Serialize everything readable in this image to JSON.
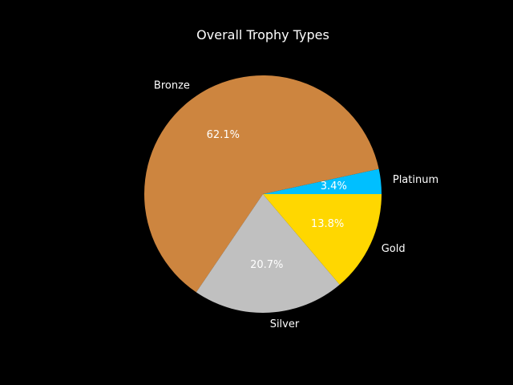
{
  "chart_data": {
    "type": "pie",
    "title": "Overall Trophy Types",
    "slices": [
      {
        "label": "Platinum",
        "value": 3.4,
        "pct_label": "3.4%",
        "color": "#00BFFF"
      },
      {
        "label": "Bronze",
        "value": 62.1,
        "pct_label": "62.1%",
        "color": "#CD853F"
      },
      {
        "label": "Silver",
        "value": 20.7,
        "pct_label": "20.7%",
        "color": "#C0C0C0"
      },
      {
        "label": "Gold",
        "value": 13.8,
        "pct_label": "13.8%",
        "color": "#FFD700"
      }
    ]
  }
}
